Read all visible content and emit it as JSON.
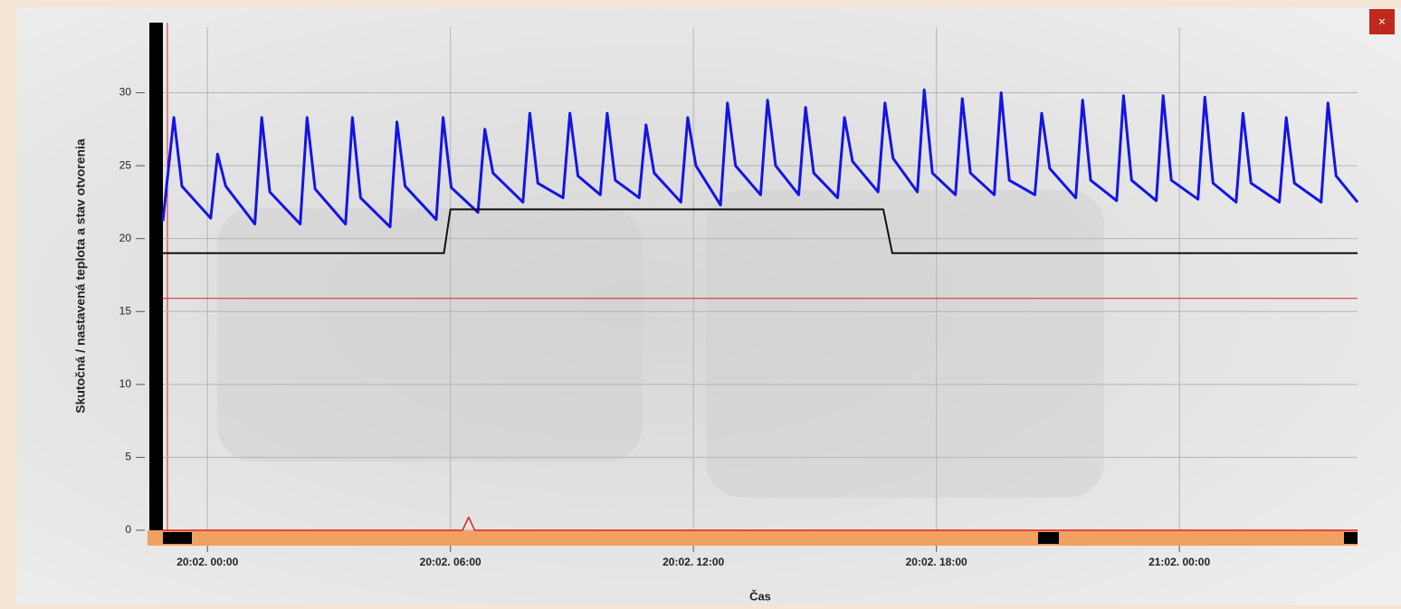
{
  "window": {
    "close_label": "×"
  },
  "chart_data": {
    "type": "line",
    "y_label": "Skutočná / nastavená teplota a stav otvorenia",
    "x_label": "Čas",
    "xlim": [
      -1.1,
      28.4
    ],
    "xticks": [
      {
        "value": 0,
        "label": "20:02. 00:00"
      },
      {
        "value": 6,
        "label": "20:02. 06:00"
      },
      {
        "value": 12,
        "label": "20:02. 12:00"
      },
      {
        "value": 18,
        "label": "20:02. 18:00"
      },
      {
        "value": 24,
        "label": "21:02. 00:00"
      }
    ],
    "ylim": [
      0,
      34.5
    ],
    "yticks": [
      0,
      5,
      10,
      15,
      20,
      25,
      30
    ],
    "grid": true,
    "series": [
      {
        "color": "#1414e6",
        "width": 3,
        "x": [
          -1.1,
          -0.83,
          -0.63,
          0.08,
          0.25,
          0.45,
          1.17,
          1.34,
          1.54,
          2.29,
          2.46,
          2.66,
          3.41,
          3.58,
          3.78,
          4.51,
          4.68,
          4.88,
          5.65,
          5.82,
          6.02,
          6.68,
          6.85,
          7.05,
          7.79,
          7.96,
          8.16,
          8.78,
          8.95,
          9.15,
          9.7,
          9.87,
          10.07,
          10.66,
          10.83,
          11.03,
          11.69,
          11.86,
          12.06,
          12.67,
          12.84,
          13.04,
          13.66,
          13.83,
          14.03,
          14.6,
          14.77,
          14.97,
          15.56,
          15.73,
          15.93,
          16.56,
          16.73,
          16.93,
          17.53,
          17.7,
          17.9,
          18.47,
          18.64,
          18.84,
          19.43,
          19.6,
          19.8,
          20.43,
          20.6,
          20.8,
          21.44,
          21.61,
          21.81,
          22.45,
          22.62,
          22.82,
          23.43,
          23.6,
          23.8,
          24.46,
          24.63,
          24.83,
          25.4,
          25.57,
          25.77,
          26.47,
          26.64,
          26.84,
          27.5,
          27.67,
          27.87,
          28.4
        ],
        "values": [
          21.2,
          28.3,
          23.6,
          21.4,
          25.8,
          23.6,
          21.0,
          28.3,
          23.2,
          21.0,
          28.3,
          23.4,
          21.0,
          28.3,
          22.8,
          20.8,
          28.0,
          23.6,
          21.3,
          28.3,
          23.5,
          21.8,
          27.5,
          24.5,
          22.5,
          28.6,
          23.8,
          22.8,
          28.6,
          24.3,
          23.0,
          28.6,
          24.0,
          22.8,
          27.8,
          24.5,
          22.5,
          28.3,
          25.0,
          22.3,
          29.3,
          25.0,
          23.0,
          29.5,
          25.0,
          23.0,
          29.0,
          24.5,
          22.8,
          28.3,
          25.3,
          23.2,
          29.3,
          25.5,
          23.2,
          30.2,
          24.5,
          23.0,
          29.6,
          24.5,
          23.0,
          30.0,
          24.0,
          23.0,
          28.6,
          24.8,
          22.8,
          29.5,
          24.0,
          22.6,
          29.8,
          24.0,
          22.6,
          29.8,
          24.0,
          22.7,
          29.7,
          23.8,
          22.5,
          28.6,
          23.8,
          22.5,
          28.3,
          23.8,
          22.5,
          29.3,
          24.3,
          22.5
        ]
      },
      {
        "color": "#111111",
        "width": 2,
        "x": [
          -1.1,
          5.84,
          6.0,
          16.69,
          16.91,
          28.4
        ],
        "values": [
          19,
          19,
          22,
          22,
          19,
          19
        ]
      },
      {
        "color": "#e02020",
        "width": 1,
        "x": [
          -1.1,
          28.4
        ],
        "values": [
          15.9,
          15.9
        ]
      },
      {
        "color": "#e02020",
        "width": 1.5,
        "x": [
          -1.1,
          6.3,
          6.45,
          6.6,
          28.4
        ],
        "values": [
          0,
          0,
          0.9,
          0,
          0
        ]
      }
    ]
  }
}
